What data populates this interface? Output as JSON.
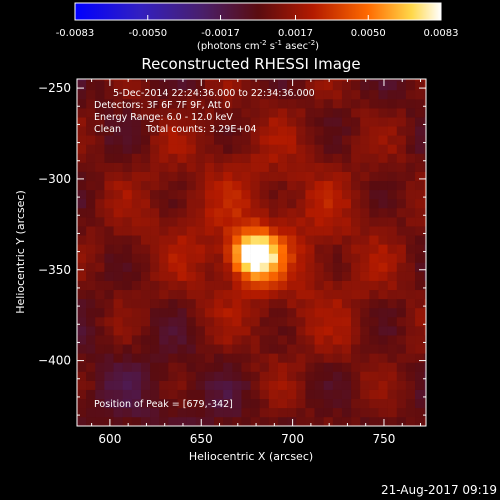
{
  "chart_data": {
    "type": "heatmap",
    "title": "Reconstructed RHESSI Image",
    "xlabel": "Heliocentric X (arcsec)",
    "ylabel": "Heliocentric Y (arcsec)",
    "xlim": [
      582,
      773
    ],
    "ylim": [
      -436,
      -245
    ],
    "x_ticks": [
      600,
      650,
      700,
      750
    ],
    "y_ticks": [
      -250,
      -300,
      -350,
      -400
    ],
    "colorbar": {
      "min": -0.0083,
      "max": 0.0083,
      "ticks": [
        "-0.0083",
        "-0.0050",
        "-0.0017",
        "0.0017",
        "0.0050",
        "0.0083"
      ],
      "tick_values": [
        -0.0083,
        -0.005,
        -0.0017,
        0.0017,
        0.005,
        0.0083
      ],
      "unit_label": "(photons cm",
      "unit_exp1": "-2",
      "unit_mid": " s",
      "unit_exp2": "-1",
      "unit_mid2": " asec",
      "unit_exp3": "-2",
      "unit_end": ")"
    },
    "annotations": {
      "time_range": "5-Dec-2014 22:24:36.000 to 22:34:36.000",
      "detectors": "Detectors: 3F 6F 7F 9F, Att 0",
      "energy": "Energy Range: 6.0 - 12.0 keV",
      "method": "Clean",
      "counts": "Total counts: 3.29E+04",
      "peak": "Position of Peak = [679,-342]"
    },
    "peak_position": [
      679,
      -342
    ],
    "peak_value": 0.0083,
    "background_level": 0.0017
  },
  "footer": {
    "date": "21-Aug-2017 09:19"
  },
  "colors": {
    "background": "#000000",
    "axes": "#ffffff",
    "colormap": [
      "#0000ff",
      "#3b1f9c",
      "#5a2a7a",
      "#8a1010",
      "#c83000",
      "#ff9a00",
      "#ffffe0"
    ]
  }
}
